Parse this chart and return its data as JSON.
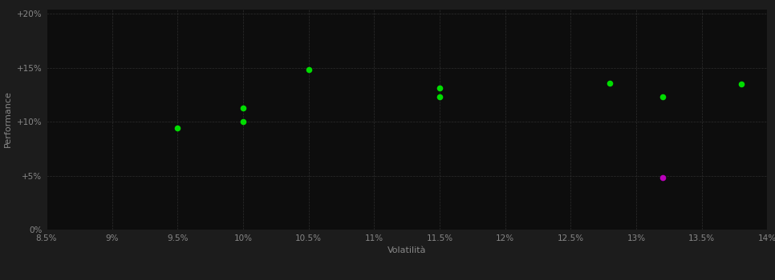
{
  "background_color": "#1c1c1c",
  "plot_bg_color": "#0d0d0d",
  "grid_color": "#2e2e2e",
  "xlabel": "Volatilità",
  "ylabel": "Performance",
  "xlim": [
    0.085,
    0.14
  ],
  "ylim": [
    0.0,
    0.205
  ],
  "xticks": [
    0.085,
    0.09,
    0.095,
    0.1,
    0.105,
    0.11,
    0.115,
    0.12,
    0.125,
    0.13,
    0.135,
    0.14
  ],
  "yticks": [
    0.0,
    0.05,
    0.1,
    0.15,
    0.2
  ],
  "ytick_labels": [
    "0%",
    "+5%",
    "+10%",
    "+15%",
    "+20%"
  ],
  "xtick_labels": [
    "8.5%",
    "9%",
    "9.5%",
    "10%",
    "10.5%",
    "11%",
    "11.5%",
    "12%",
    "12.5%",
    "13%",
    "13.5%",
    "14%"
  ],
  "green_points": [
    [
      0.095,
      0.094
    ],
    [
      0.1,
      0.113
    ],
    [
      0.1,
      0.1
    ],
    [
      0.105,
      0.148
    ],
    [
      0.115,
      0.131
    ],
    [
      0.115,
      0.123
    ],
    [
      0.128,
      0.136
    ],
    [
      0.132,
      0.123
    ],
    [
      0.138,
      0.135
    ]
  ],
  "magenta_points": [
    [
      0.132,
      0.048
    ]
  ],
  "dot_size": 30,
  "green_color": "#00dd00",
  "magenta_color": "#bb00bb",
  "tick_color": "#888888",
  "label_color": "#888888",
  "font_size_ticks": 7.5,
  "font_size_labels": 8,
  "figsize": [
    9.66,
    3.5
  ],
  "dpi": 100
}
